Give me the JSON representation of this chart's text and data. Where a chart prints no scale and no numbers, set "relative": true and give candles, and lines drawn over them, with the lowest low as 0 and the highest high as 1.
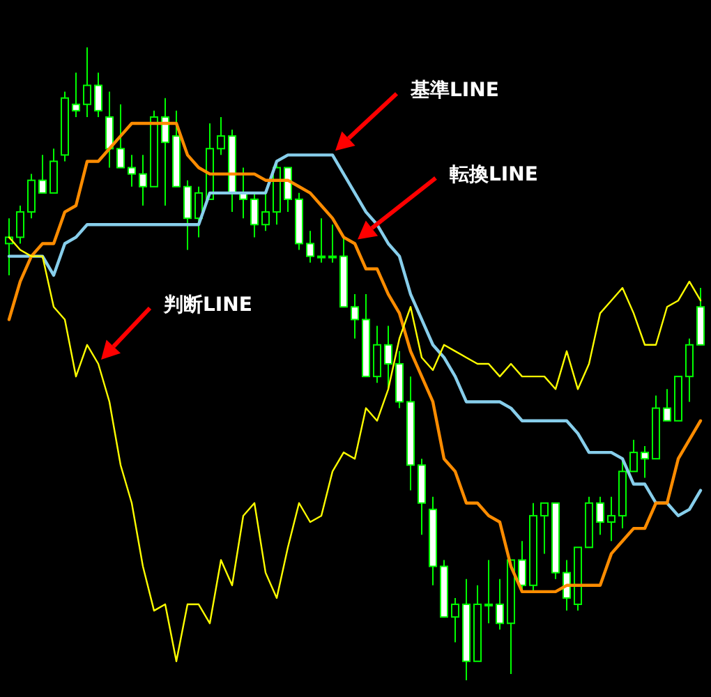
{
  "chart_data": {
    "type": "candlestick",
    "relative": true,
    "annotations": [
      "基準LINE",
      "転換LINE",
      "判断LINE"
    ],
    "categories": [
      null,
      null,
      null,
      null,
      null,
      null,
      null,
      null,
      null,
      null,
      null,
      null,
      null,
      null,
      null,
      null,
      null,
      null,
      null,
      null,
      null,
      null,
      null,
      null,
      null,
      null,
      null,
      null,
      null,
      null,
      null,
      null,
      null,
      null,
      null,
      null,
      null,
      null,
      null,
      null,
      null,
      null,
      null,
      null,
      null,
      null,
      null,
      null,
      null,
      null,
      null,
      null,
      null,
      null,
      null,
      null,
      null,
      null,
      null,
      null,
      null,
      null,
      null
    ],
    "ohlc": [
      [
        0.69,
        0.73,
        0.64,
        0.7
      ],
      [
        0.7,
        0.75,
        0.69,
        0.74
      ],
      [
        0.74,
        0.8,
        0.73,
        0.79
      ],
      [
        0.79,
        0.83,
        0.77,
        0.77
      ],
      [
        0.77,
        0.84,
        0.77,
        0.82
      ],
      [
        0.83,
        0.93,
        0.82,
        0.92
      ],
      [
        0.91,
        0.96,
        0.89,
        0.9
      ],
      [
        0.91,
        1,
        0.89,
        0.94
      ],
      [
        0.94,
        0.96,
        0.89,
        0.9
      ],
      [
        0.89,
        0.93,
        0.81,
        0.84
      ],
      [
        0.84,
        0.91,
        0.81,
        0.81
      ],
      [
        0.81,
        0.83,
        0.78,
        0.8
      ],
      [
        0.8,
        0.83,
        0.75,
        0.78
      ],
      [
        0.78,
        0.9,
        0.78,
        0.89
      ],
      [
        0.89,
        0.92,
        0.75,
        0.85
      ],
      [
        0.86,
        0.9,
        0.78,
        0.78
      ],
      [
        0.78,
        0.79,
        0.68,
        0.73
      ],
      [
        0.73,
        0.78,
        0.7,
        0.77
      ],
      [
        0.76,
        0.88,
        0.76,
        0.84
      ],
      [
        0.84,
        0.89,
        0.83,
        0.86
      ],
      [
        0.86,
        0.87,
        0.74,
        0.77
      ],
      [
        0.77,
        0.81,
        0.73,
        0.76
      ],
      [
        0.76,
        0.77,
        0.7,
        0.72
      ],
      [
        0.72,
        0.77,
        0.71,
        0.74
      ],
      [
        0.74,
        0.82,
        0.72,
        0.81
      ],
      [
        0.81,
        0.81,
        0.74,
        0.76
      ],
      [
        0.76,
        0.77,
        0.68,
        0.69
      ],
      [
        0.69,
        0.71,
        0.66,
        0.67
      ],
      [
        0.67,
        0.73,
        0.66,
        0.67
      ],
      [
        0.67,
        0.72,
        0.66,
        0.67
      ],
      [
        0.67,
        0.7,
        0.59,
        0.59
      ],
      [
        0.59,
        0.61,
        0.54,
        0.57
      ],
      [
        0.57,
        0.61,
        0.48,
        0.48
      ],
      [
        0.48,
        0.56,
        0.47,
        0.53
      ],
      [
        0.53,
        0.56,
        0.46,
        0.5
      ],
      [
        0.5,
        0.52,
        0.43,
        0.44
      ],
      [
        0.44,
        0.48,
        0.3,
        0.34
      ],
      [
        0.34,
        0.35,
        0.23,
        0.28
      ],
      [
        0.27,
        0.29,
        0.15,
        0.18
      ],
      [
        0.18,
        0.19,
        0.1,
        0.1
      ],
      [
        0.1,
        0.13,
        0.06,
        0.12
      ],
      [
        0.12,
        0.16,
        0,
        0.03
      ],
      [
        0.03,
        0.15,
        0.03,
        0.12
      ],
      [
        0.12,
        0.19,
        0.09,
        0.12
      ],
      [
        0.12,
        0.16,
        0.08,
        0.09
      ],
      [
        0.09,
        0.19,
        0.01,
        0.19
      ],
      [
        0.19,
        0.22,
        0.14,
        0.15
      ],
      [
        0.15,
        0.28,
        0.14,
        0.26
      ],
      [
        0.26,
        0.28,
        0.2,
        0.28
      ],
      [
        0.28,
        0.28,
        0.16,
        0.17
      ],
      [
        0.17,
        0.19,
        0.11,
        0.13
      ],
      [
        0.12,
        0.21,
        0.11,
        0.21
      ],
      [
        0.21,
        0.29,
        0.21,
        0.28
      ],
      [
        0.28,
        0.29,
        0.23,
        0.25
      ],
      [
        0.25,
        0.29,
        0.22,
        0.26
      ],
      [
        0.26,
        0.35,
        0.24,
        0.33
      ],
      [
        0.33,
        0.38,
        0.33,
        0.36
      ],
      [
        0.36,
        0.37,
        0.32,
        0.35
      ],
      [
        0.35,
        0.45,
        0.35,
        0.43
      ],
      [
        0.43,
        0.46,
        0.41,
        0.41
      ],
      [
        0.41,
        0.48,
        0.41,
        0.48
      ],
      [
        0.48,
        0.54,
        0.44,
        0.53
      ],
      [
        0.59,
        0.62,
        0.53,
        0.53
      ]
    ],
    "series": [
      {
        "type": "line",
        "color": "#87ceeb",
        "values": [
          0.67,
          0.67,
          0.67,
          0.67,
          0.64,
          0.69,
          0.7,
          0.72,
          0.72,
          0.72,
          0.72,
          0.72,
          0.72,
          0.72,
          0.72,
          0.72,
          0.72,
          0.72,
          0.77,
          0.77,
          0.77,
          0.77,
          0.77,
          0.77,
          0.82,
          0.83,
          0.83,
          0.83,
          0.83,
          0.83,
          0.8,
          0.77,
          0.74,
          0.72,
          0.69,
          0.67,
          0.61,
          0.57,
          0.53,
          0.51,
          0.48,
          0.44,
          0.44,
          0.44,
          0.44,
          0.43,
          0.41,
          0.41,
          0.41,
          0.41,
          0.41,
          0.39,
          0.36,
          0.36,
          0.36,
          0.35,
          0.31,
          0.31,
          0.28,
          0.28,
          0.26,
          0.27,
          0.3
        ]
      },
      {
        "type": "line",
        "color": "#ff8c00",
        "values": [
          0.57,
          0.63,
          0.67,
          0.69,
          0.69,
          0.74,
          0.75,
          0.82,
          0.82,
          0.84,
          0.86,
          0.88,
          0.88,
          0.88,
          0.88,
          0.88,
          0.83,
          0.81,
          0.8,
          0.8,
          0.8,
          0.8,
          0.8,
          0.79,
          0.79,
          0.79,
          0.78,
          0.77,
          0.75,
          0.73,
          0.7,
          0.69,
          0.65,
          0.65,
          0.61,
          0.58,
          0.52,
          0.48,
          0.44,
          0.35,
          0.33,
          0.28,
          0.28,
          0.26,
          0.25,
          0.18,
          0.14,
          0.14,
          0.14,
          0.14,
          0.15,
          0.15,
          0.15,
          0.15,
          0.2,
          0.22,
          0.24,
          0.24,
          0.28,
          0.28,
          0.35,
          0.38,
          0.41
        ]
      },
      {
        "type": "line",
        "color": "#ffff00",
        "values": [
          0.7,
          0.68,
          0.67,
          0.67,
          0.59,
          0.57,
          0.48,
          0.53,
          0.5,
          0.44,
          0.34,
          0.28,
          0.18,
          0.11,
          0.12,
          0.03,
          0.12,
          0.12,
          0.09,
          0.19,
          0.15,
          0.26,
          0.28,
          0.17,
          0.13,
          0.21,
          0.28,
          0.25,
          0.26,
          0.33,
          0.36,
          0.35,
          0.43,
          0.41,
          0.46,
          0.54,
          0.59,
          0.51,
          0.49,
          0.53,
          0.52,
          0.51,
          0.5,
          0.5,
          0.48,
          0.5,
          0.48,
          0.48,
          0.48,
          0.46,
          0.52,
          0.46,
          0.5,
          0.58,
          0.6,
          0.62,
          0.58,
          0.53,
          0.53,
          0.59,
          0.6,
          0.63,
          0.6
        ]
      }
    ]
  }
}
